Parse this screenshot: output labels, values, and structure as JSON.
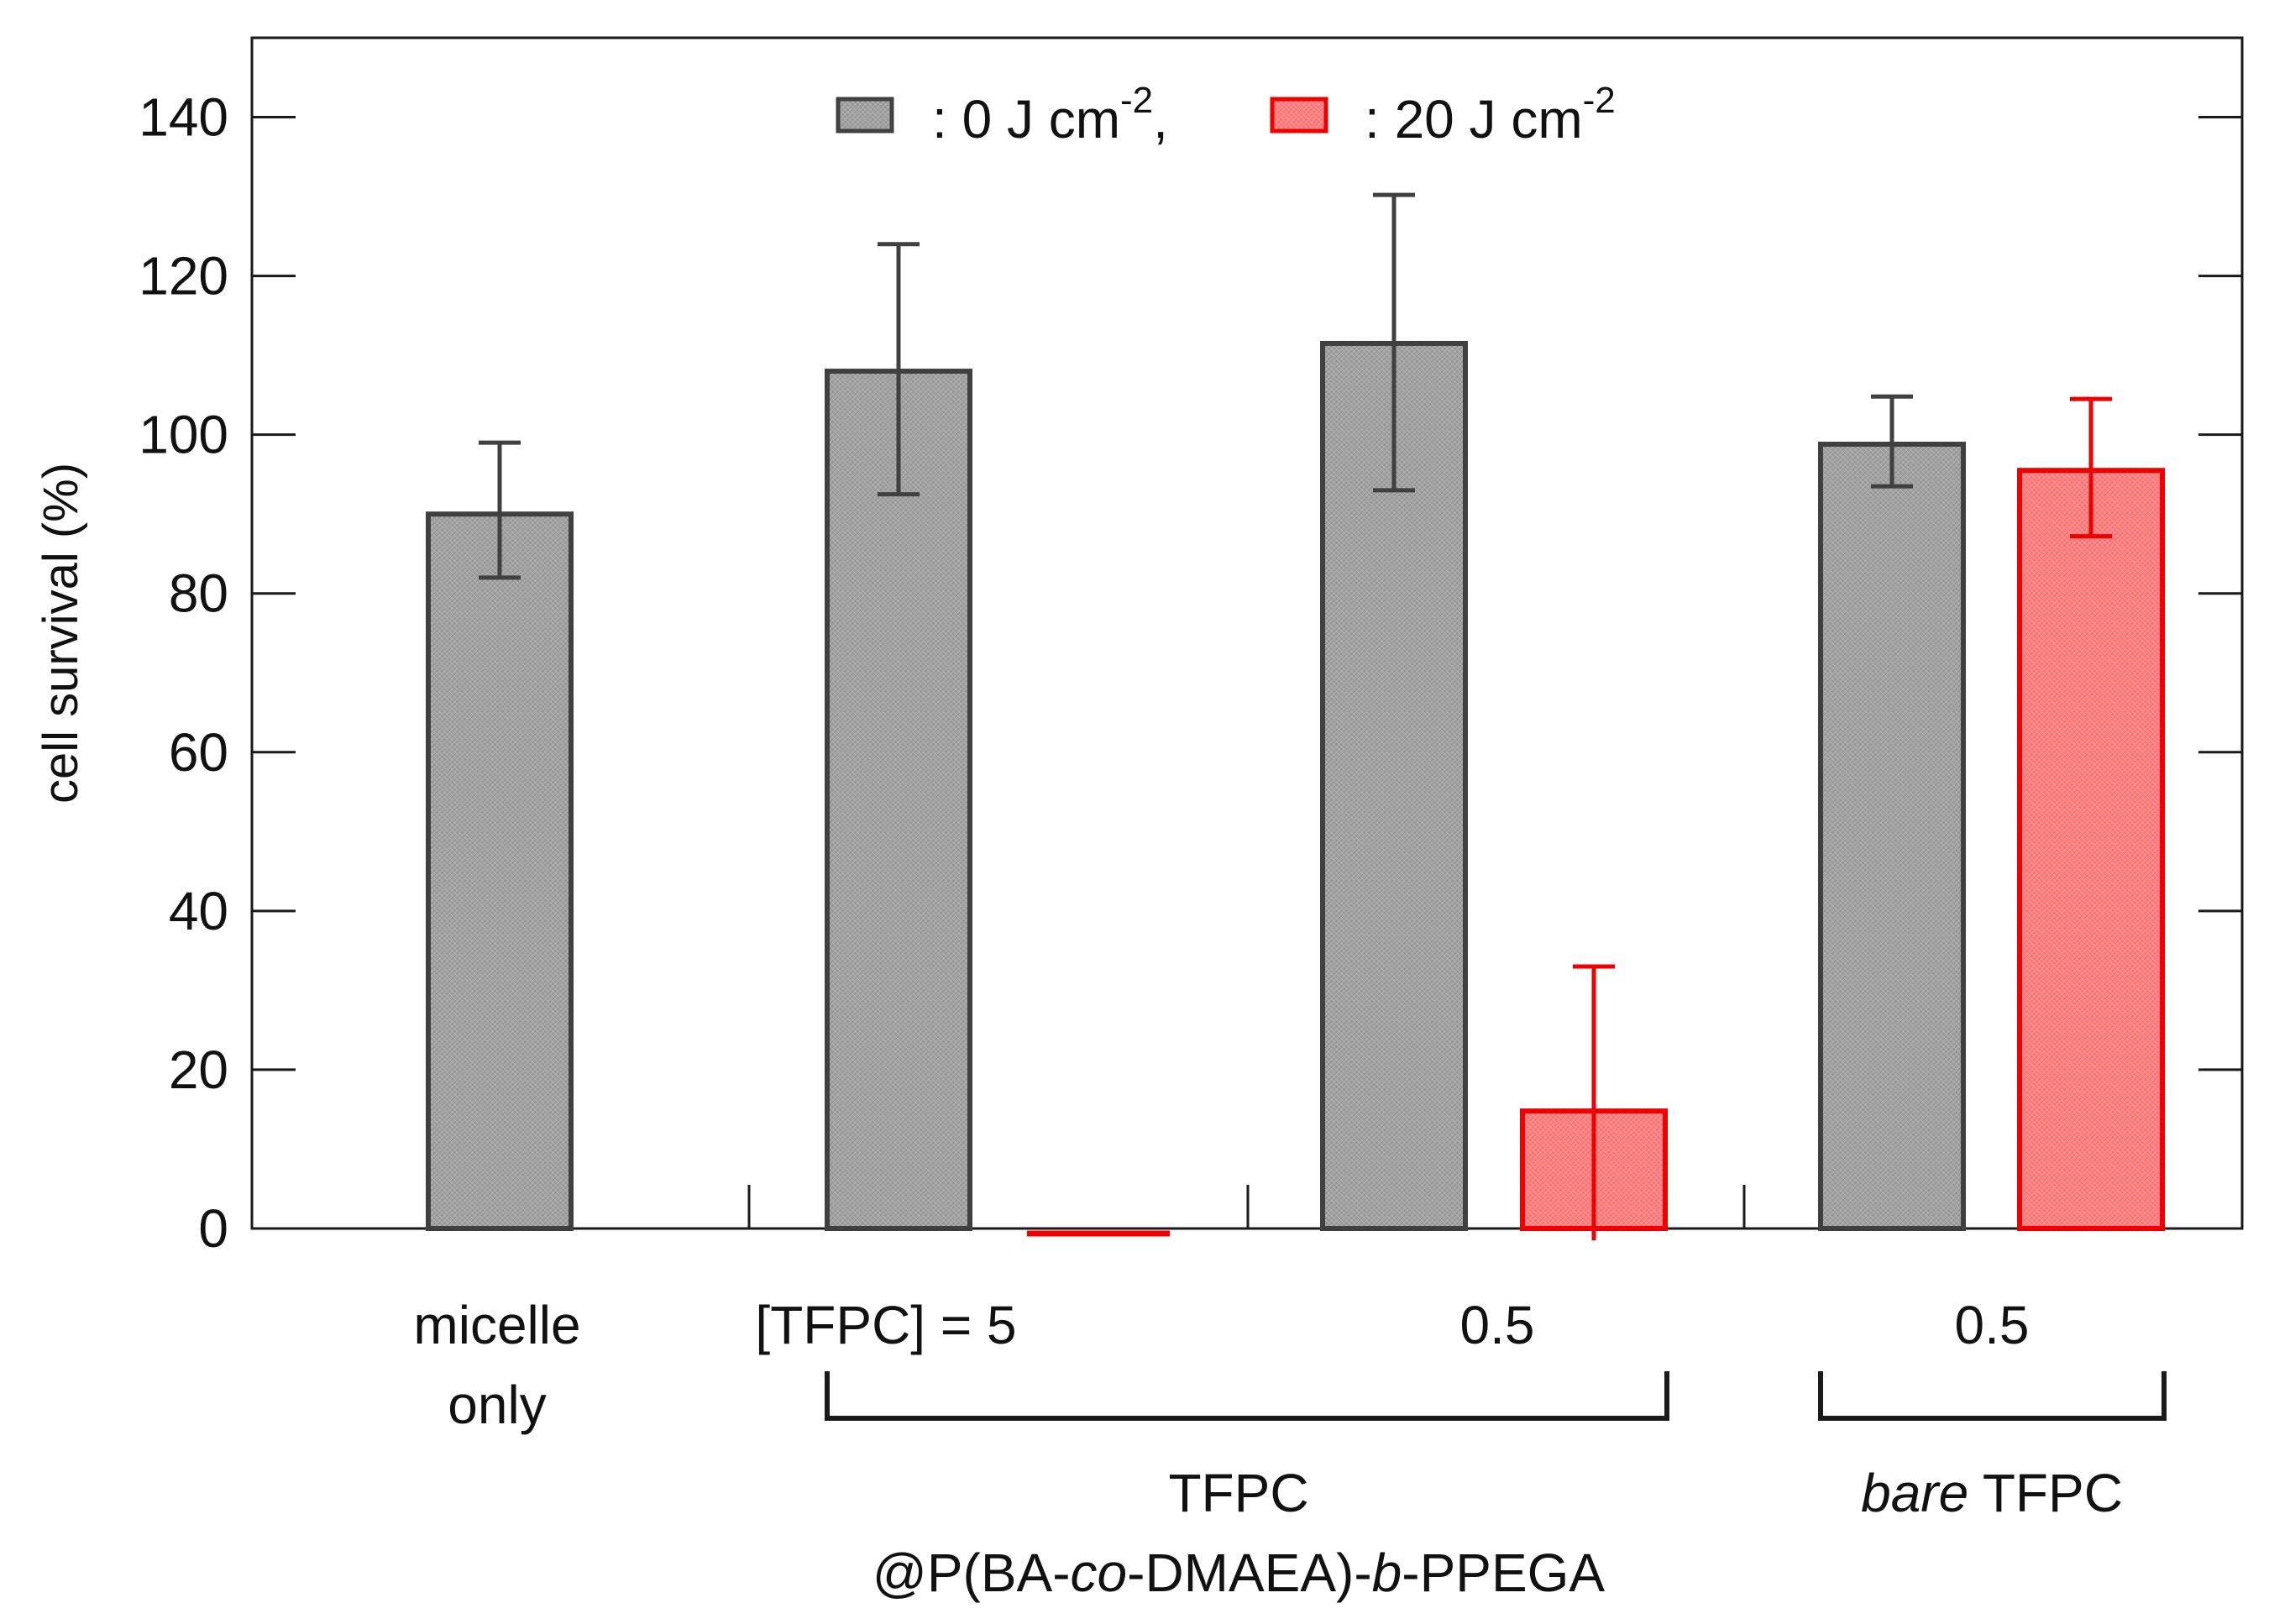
{
  "chart_data": {
    "type": "bar",
    "title": "",
    "xlabel": "",
    "ylabel": "cell survival (%)",
    "ylim": [
      0,
      150
    ],
    "yticks": [
      0,
      20,
      40,
      60,
      80,
      100,
      120,
      140
    ],
    "legend": {
      "placement": "top-center",
      "entries": [
        {
          "label": ": 0 J cm",
          "sup": "-2",
          "tail": ","
        },
        {
          "label": ": 20 J cm",
          "sup": "-2",
          "tail": ""
        }
      ]
    },
    "groups": [
      {
        "label_lines": [
          "micelle",
          "only"
        ]
      },
      {
        "label_lines": [
          "[TFPC] = 5"
        ]
      },
      {
        "label_lines": [
          "0.5"
        ]
      },
      {
        "label_lines": [
          "0.5"
        ]
      }
    ],
    "series": [
      {
        "name": "0 J cm-2",
        "color": "#9e9e9e",
        "edge": "#404040",
        "err_color": "#404040",
        "values": [
          90,
          108,
          111.5,
          98.8
        ],
        "errors": [
          [
            82,
            99
          ],
          [
            92.5,
            124
          ],
          [
            93,
            130.2
          ],
          [
            93.5,
            104.8
          ]
        ]
      },
      {
        "name": "20 J cm-2",
        "color": "#ff7f7f",
        "edge": "#ee0000",
        "err_color": "#ee0000",
        "values": [
          null,
          0,
          14.8,
          95.5
        ],
        "errors": [
          null,
          null,
          [
            -1.5,
            33
          ],
          [
            87.2,
            104.5
          ]
        ]
      }
    ],
    "brackets": [
      {
        "line1": "TFPC",
        "line2_parts": [
          {
            "t": "@P(BA-",
            "i": false
          },
          {
            "t": "co",
            "i": true
          },
          {
            "t": "-DMAEA)-",
            "i": false
          },
          {
            "t": "b",
            "i": true
          },
          {
            "t": "-PPEGA",
            "i": false
          }
        ]
      },
      {
        "line1_parts": [
          {
            "t": "bare",
            "i": true
          },
          {
            "t": " TFPC",
            "i": false
          }
        ]
      }
    ]
  }
}
